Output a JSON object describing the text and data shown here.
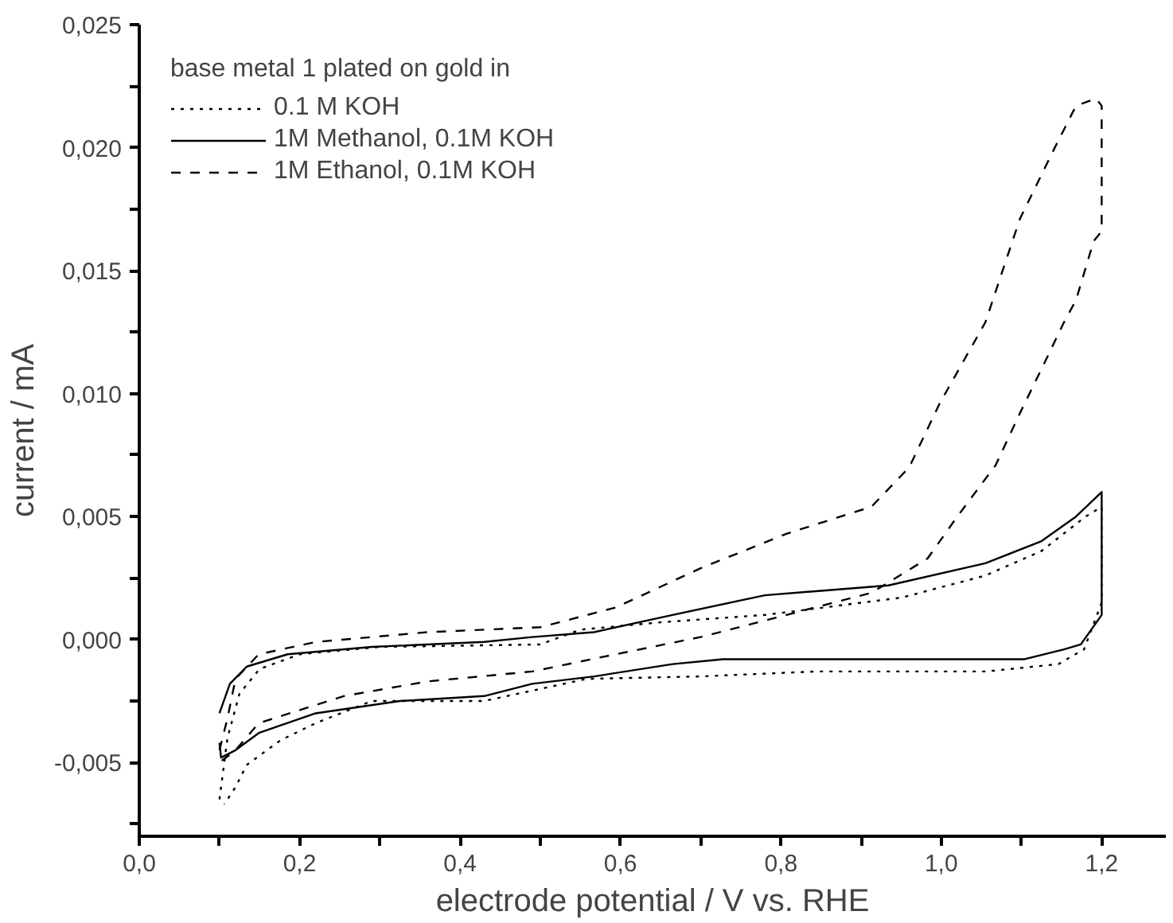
{
  "chart_data": {
    "type": "line",
    "xlabel": "electrode potential / V vs. RHE",
    "ylabel": "current / mA",
    "legend_title": "base metal 1 plated on gold in",
    "legend": "top left",
    "grid": false,
    "xlim": [
      0,
      1.28
    ],
    "ylim": [
      -0.008,
      0.025
    ],
    "xticks": [
      {
        "value": 0,
        "label": "0,0"
      },
      {
        "value": 0.1,
        "label": null
      },
      {
        "value": 0.2,
        "label": "0,2"
      },
      {
        "value": 0.3,
        "label": null
      },
      {
        "value": 0.4,
        "label": "0,4"
      },
      {
        "value": 0.5,
        "label": null
      },
      {
        "value": 0.6,
        "label": "0,6"
      },
      {
        "value": 0.7,
        "label": null
      },
      {
        "value": 0.8,
        "label": "0,8"
      },
      {
        "value": 0.9,
        "label": null
      },
      {
        "value": 1.0,
        "label": "1,0"
      },
      {
        "value": 1.1,
        "label": null
      },
      {
        "value": 1.2,
        "label": "1,2"
      }
    ],
    "yticks": [
      {
        "value": -0.0075,
        "label": null
      },
      {
        "value": -0.005,
        "label": "-0,005"
      },
      {
        "value": -0.0025,
        "label": null
      },
      {
        "value": 0,
        "label": "0,000"
      },
      {
        "value": 0.0025,
        "label": null
      },
      {
        "value": 0.005,
        "label": "0,005"
      },
      {
        "value": 0.0075,
        "label": null
      },
      {
        "value": 0.01,
        "label": "0,010"
      },
      {
        "value": 0.0125,
        "label": null
      },
      {
        "value": 0.015,
        "label": "0,015"
      },
      {
        "value": 0.0175,
        "label": null
      },
      {
        "value": 0.02,
        "label": "0,020"
      },
      {
        "value": 0.0225,
        "label": null
      },
      {
        "value": 0.025,
        "label": "0,025"
      }
    ],
    "series": [
      {
        "name": "0.1 M KOH",
        "color": "#000000",
        "line_style": "dotted",
        "x": [
          0.1,
          0.11,
          0.125,
          0.15,
          0.2,
          0.3,
          0.5,
          0.55,
          0.65,
          0.78,
          0.95,
          1.055,
          1.125,
          1.18,
          1.2,
          1.2,
          1.178,
          1.146,
          1.055,
          0.843,
          0.7,
          0.558,
          0.43,
          0.29,
          0.22,
          0.176,
          0.134,
          0.12,
          0.106
        ],
        "values": [
          -0.0065,
          -0.004,
          -0.0022,
          -0.0012,
          -0.0006,
          -0.0003,
          -0.0002,
          0.0004,
          0.0007,
          0.001,
          0.0017,
          0.0026,
          0.0036,
          0.005,
          0.0054,
          0.0015,
          -0.0004,
          -0.001,
          -0.0013,
          -0.0013,
          -0.0015,
          -0.0016,
          -0.0025,
          -0.0025,
          -0.0034,
          -0.0041,
          -0.0051,
          -0.006,
          -0.0067
        ]
      },
      {
        "name": "1M Methanol, 0.1M KOH",
        "color": "#000000",
        "line_style": "solid",
        "x": [
          0.1,
          0.113,
          0.134,
          0.185,
          0.29,
          0.43,
          0.49,
          0.567,
          0.665,
          0.78,
          0.934,
          1.055,
          1.125,
          1.168,
          1.2,
          1.2,
          1.174,
          1.153,
          1.104,
          0.728,
          0.665,
          0.567,
          0.49,
          0.43,
          0.325,
          0.22,
          0.149,
          0.12,
          0.102,
          0.1
        ],
        "values": [
          -0.003,
          -0.0018,
          -0.0011,
          -0.0006,
          -0.0003,
          -0.0001,
          0.0001,
          0.0003,
          0.001,
          0.0018,
          0.0022,
          0.0031,
          0.004,
          0.005,
          0.006,
          0.001,
          -0.0002,
          -0.0004,
          -0.0008,
          -0.0008,
          -0.001,
          -0.0015,
          -0.0018,
          -0.0023,
          -0.0025,
          -0.003,
          -0.0038,
          -0.0045,
          -0.0048,
          -0.0042
        ]
      },
      {
        "name": "1M Ethanol, 0.1M KOH",
        "color": "#000000",
        "line_style": "dashed",
        "x": [
          0.1,
          0.11,
          0.12,
          0.149,
          0.22,
          0.36,
          0.5,
          0.594,
          0.7,
          0.807,
          0.913,
          0.96,
          0.998,
          1.055,
          1.098,
          1.14,
          1.168,
          1.193,
          1.2,
          1.2,
          1.19,
          1.168,
          1.153,
          1.125,
          1.098,
          1.068,
          1.02,
          0.983,
          0.913,
          0.807,
          0.7,
          0.594,
          0.49,
          0.36,
          0.255,
          0.149,
          0.12,
          0.1
        ],
        "values": [
          -0.0045,
          -0.0032,
          -0.0016,
          -0.0006,
          -0.0001,
          0.0003,
          0.0005,
          0.0013,
          0.0029,
          0.0043,
          0.0054,
          0.007,
          0.0096,
          0.0129,
          0.0171,
          0.0199,
          0.0217,
          0.022,
          0.0217,
          0.0166,
          0.0162,
          0.0138,
          0.0129,
          0.011,
          0.0092,
          0.0071,
          0.005,
          0.0033,
          0.0019,
          0.001,
          0.0001,
          -0.0006,
          -0.0013,
          -0.0017,
          -0.0023,
          -0.0034,
          -0.0045,
          -0.005
        ]
      }
    ]
  }
}
